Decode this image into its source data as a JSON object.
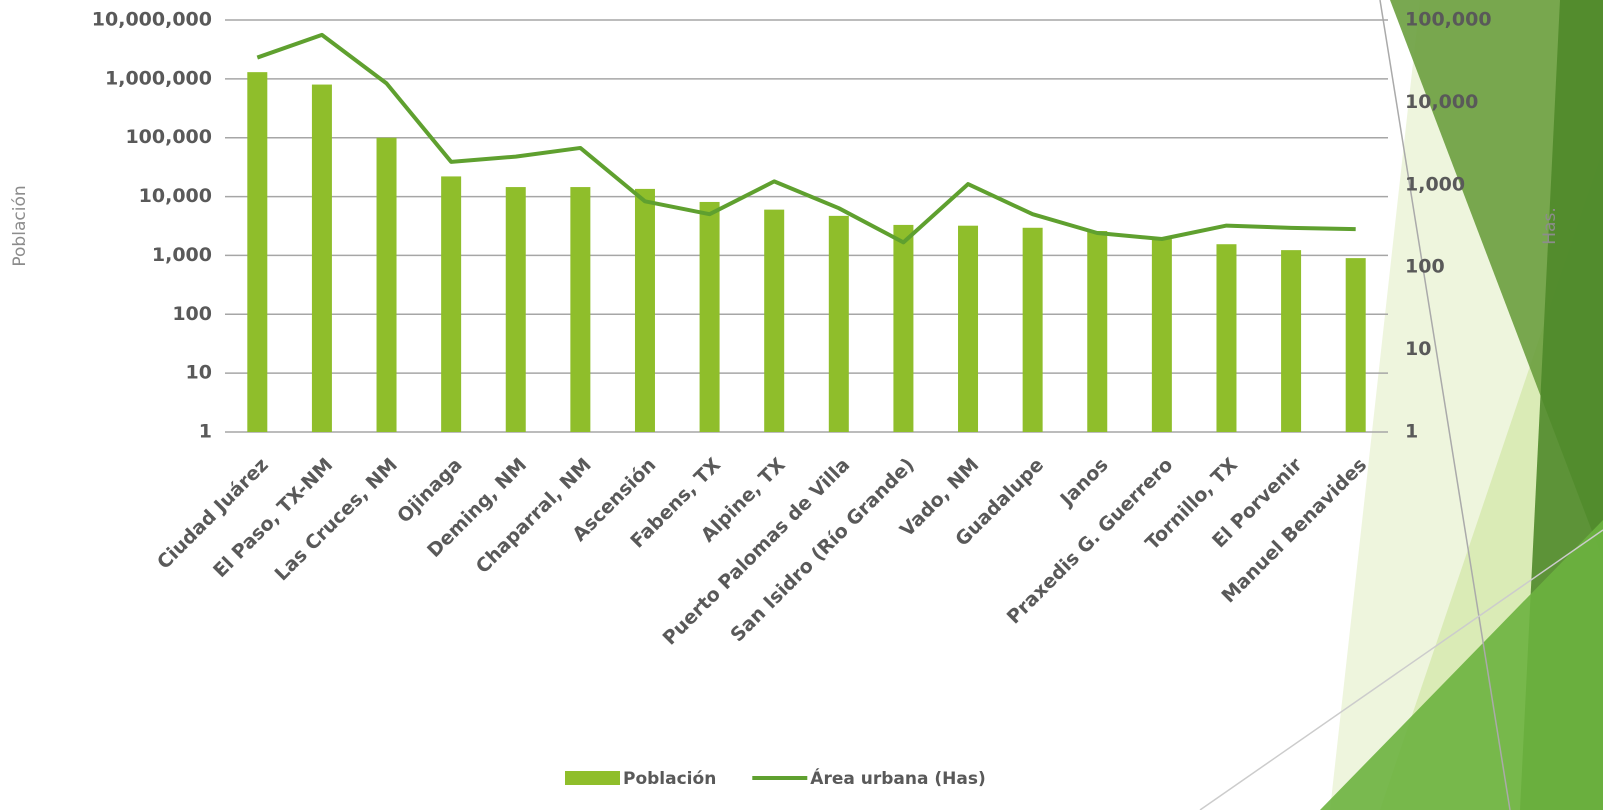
{
  "chart_data": {
    "type": "bar",
    "categories": [
      "Ciudad Juárez",
      "El Paso, TX-NM",
      "Las Cruces, NM",
      "Ojinaga",
      "Deming, NM",
      "Chaparral, NM",
      "Ascensión",
      "Fabens, TX",
      "Alpine, TX",
      "Puerto Palomas de Villa",
      "San Isidro (Río Grande)",
      "Vado, NM",
      "Guadalupe",
      "Janos",
      "Praxedis G. Guerrero",
      "Tornillo, TX",
      "El Porvenir",
      "Manuel Benavides"
    ],
    "series": [
      {
        "name": "Población",
        "type": "bar",
        "color": "#8fbe2b",
        "values": [
          1300000,
          800000,
          100000,
          22000,
          14500,
          14500,
          13500,
          8100,
          6000,
          4700,
          3300,
          3200,
          2950,
          2600,
          1900,
          1550,
          1230,
          900
        ]
      },
      {
        "name": "Área urbana (Has)",
        "type": "line",
        "axis": "y2",
        "color": "#5fa02f",
        "values": [
          35000,
          66000,
          17000,
          1900,
          2200,
          2800,
          630,
          440,
          1100,
          520,
          200,
          1020,
          440,
          260,
          220,
          320,
          300,
          290
        ]
      }
    ],
    "ylabel": "Población",
    "y2label": "Has.",
    "log_scale": true,
    "ylim": [
      1,
      10000000
    ],
    "yticks": [
      1,
      10,
      100,
      {
        "value": 1000,
        "label": "1,000"
      },
      {
        "value": 10000,
        "label": "10,000"
      },
      {
        "value": 100000,
        "label": "100,000"
      },
      {
        "value": 1000000,
        "label": "1,000,000"
      },
      {
        "value": 10000000,
        "label": "10,000,000"
      }
    ],
    "y2lim": [
      1,
      100000
    ],
    "y2ticks": [
      1,
      10,
      100,
      {
        "value": 1000,
        "label": "1,000"
      },
      {
        "value": 10000,
        "label": "10,000"
      },
      {
        "value": 100000,
        "label": "100,000"
      }
    ],
    "grid": true,
    "legend": "bottom"
  }
}
